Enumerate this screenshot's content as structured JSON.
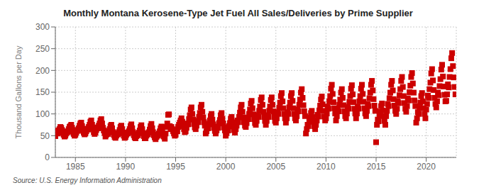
{
  "chart_data": {
    "type": "scatter",
    "title": "Monthly Montana Kerosene-Type Jet Fuel All Sales/Deliveries by Prime Supplier",
    "y_label": "Thousand Gallons per Day",
    "annotations": [
      "Source: U.S. Energy Information Administration"
    ],
    "color": "#CC0000",
    "marker": "square",
    "grid": true,
    "xlim": [
      1983.0,
      2023.0
    ],
    "ylim": [
      0,
      300
    ],
    "xticks": [
      1985,
      1990,
      1995,
      2000,
      2005,
      2010,
      2015,
      2020
    ],
    "yticks": [
      0,
      50,
      100,
      150,
      200,
      250,
      300
    ],
    "x": [
      1983,
      1983.0833333333333,
      1983.1666666666667,
      1983.25,
      1983.3333333333333,
      1983.4166666666667,
      1983.5,
      1983.5833333333333,
      1983.6666666666667,
      1983.75,
      1983.8333333333333,
      1983.9166666666667,
      1984,
      1984.0833333333333,
      1984.1666666666667,
      1984.25,
      1984.3333333333333,
      1984.4166666666667,
      1984.5,
      1984.5833333333333,
      1984.6666666666667,
      1984.75,
      1984.8333333333333,
      1984.9166666666667,
      1985,
      1985.0833333333333,
      1985.1666666666667,
      1985.25,
      1985.3333333333333,
      1985.4166666666667,
      1985.5,
      1985.5833333333333,
      1985.6666666666667,
      1985.75,
      1985.8333333333333,
      1985.9166666666667,
      1986,
      1986.0833333333333,
      1986.1666666666667,
      1986.25,
      1986.3333333333333,
      1986.4166666666667,
      1986.5,
      1986.5833333333333,
      1986.6666666666667,
      1986.75,
      1986.8333333333333,
      1986.9166666666667,
      1987,
      1987.0833333333333,
      1987.1666666666667,
      1987.25,
      1987.3333333333333,
      1987.4166666666667,
      1987.5,
      1987.5833333333333,
      1987.6666666666667,
      1987.75,
      1987.8333333333333,
      1987.9166666666667,
      1988,
      1988.0833333333333,
      1988.1666666666667,
      1988.25,
      1988.3333333333333,
      1988.4166666666667,
      1988.5,
      1988.5833333333333,
      1988.6666666666667,
      1988.75,
      1988.8333333333333,
      1988.9166666666667,
      1989,
      1989.0833333333333,
      1989.1666666666667,
      1989.25,
      1989.3333333333333,
      1989.4166666666667,
      1989.5,
      1989.5833333333333,
      1989.6666666666667,
      1989.75,
      1989.8333333333333,
      1989.9166666666667,
      1990,
      1990.0833333333333,
      1990.1666666666667,
      1990.25,
      1990.3333333333333,
      1990.4166666666667,
      1990.5,
      1990.5833333333333,
      1990.6666666666667,
      1990.75,
      1990.8333333333333,
      1990.9166666666667,
      1991,
      1991.0833333333333,
      1991.1666666666667,
      1991.25,
      1991.3333333333333,
      1991.4166666666667,
      1991.5,
      1991.5833333333333,
      1991.6666666666667,
      1991.75,
      1991.8333333333333,
      1991.9166666666667,
      1992,
      1992.0833333333333,
      1992.1666666666667,
      1992.25,
      1992.3333333333333,
      1992.4166666666667,
      1992.5,
      1992.5833333333333,
      1992.6666666666667,
      1992.75,
      1992.8333333333333,
      1992.9166666666667,
      1993,
      1993.0833333333333,
      1993.1666666666667,
      1993.25,
      1993.3333333333333,
      1993.4166666666667,
      1993.5,
      1993.5833333333333,
      1993.6666666666667,
      1993.75,
      1993.8333333333333,
      1993.9166666666667,
      1994,
      1994.0833333333333,
      1994.1666666666667,
      1994.25,
      1994.3333333333333,
      1994.4166666666667,
      1994.5,
      1994.5833333333333,
      1994.6666666666667,
      1994.75,
      1994.8333333333333,
      1994.9166666666667,
      1995,
      1995.0833333333333,
      1995.1666666666667,
      1995.25,
      1995.3333333333333,
      1995.4166666666667,
      1995.5,
      1995.5833333333333,
      1995.6666666666667,
      1995.75,
      1995.8333333333333,
      1995.9166666666667,
      1996,
      1996.0833333333333,
      1996.1666666666667,
      1996.25,
      1996.3333333333333,
      1996.4166666666667,
      1996.5,
      1996.5833333333333,
      1996.6666666666667,
      1996.75,
      1996.8333333333333,
      1996.9166666666667,
      1997,
      1997.0833333333333,
      1997.1666666666667,
      1997.25,
      1997.3333333333333,
      1997.4166666666667,
      1997.5,
      1997.5833333333333,
      1997.6666666666667,
      1997.75,
      1997.8333333333333,
      1997.9166666666667,
      1998,
      1998.0833333333333,
      1998.1666666666667,
      1998.25,
      1998.3333333333333,
      1998.4166666666667,
      1998.5,
      1998.5833333333333,
      1998.6666666666667,
      1998.75,
      1998.8333333333333,
      1998.9166666666667,
      1999,
      1999.0833333333333,
      1999.1666666666667,
      1999.25,
      1999.3333333333333,
      1999.4166666666667,
      1999.5,
      1999.5833333333333,
      1999.6666666666667,
      1999.75,
      1999.8333333333333,
      1999.9166666666667,
      2000,
      2000.0833333333333,
      2000.1666666666667,
      2000.25,
      2000.3333333333333,
      2000.4166666666667,
      2000.5,
      2000.5833333333333,
      2000.6666666666667,
      2000.75,
      2000.8333333333333,
      2000.9166666666667,
      2001,
      2001.0833333333333,
      2001.1666666666667,
      2001.25,
      2001.3333333333333,
      2001.4166666666667,
      2001.5,
      2001.5833333333333,
      2001.6666666666667,
      2001.75,
      2001.8333333333333,
      2001.9166666666667,
      2002,
      2002.0833333333333,
      2002.1666666666667,
      2002.25,
      2002.3333333333333,
      2002.4166666666667,
      2002.5,
      2002.5833333333333,
      2002.6666666666667,
      2002.75,
      2002.8333333333333,
      2002.9166666666667,
      2003,
      2003.0833333333333,
      2003.1666666666667,
      2003.25,
      2003.3333333333333,
      2003.4166666666667,
      2003.5,
      2003.5833333333333,
      2003.6666666666667,
      2003.75,
      2003.8333333333333,
      2003.9166666666667,
      2004,
      2004.0833333333333,
      2004.1666666666667,
      2004.25,
      2004.3333333333333,
      2004.4166666666667,
      2004.5,
      2004.5833333333333,
      2004.6666666666667,
      2004.75,
      2004.8333333333333,
      2004.9166666666667,
      2005,
      2005.0833333333333,
      2005.1666666666667,
      2005.25,
      2005.3333333333333,
      2005.4166666666667,
      2005.5,
      2005.5833333333333,
      2005.6666666666667,
      2005.75,
      2005.8333333333333,
      2005.9166666666667,
      2006,
      2006.0833333333333,
      2006.1666666666667,
      2006.25,
      2006.3333333333333,
      2006.4166666666667,
      2006.5,
      2006.5833333333333,
      2006.6666666666667,
      2006.75,
      2006.8333333333333,
      2006.9166666666667,
      2007,
      2007.0833333333333,
      2007.1666666666667,
      2007.25,
      2007.3333333333333,
      2007.4166666666667,
      2007.5,
      2007.5833333333333,
      2007.6666666666667,
      2007.75,
      2007.8333333333333,
      2007.9166666666667,
      2008,
      2008.0833333333333,
      2008.1666666666667,
      2008.25,
      2008.3333333333333,
      2008.4166666666667,
      2008.5,
      2008.5833333333333,
      2008.6666666666667,
      2008.75,
      2008.8333333333333,
      2008.9166666666667,
      2009,
      2009.0833333333333,
      2009.1666666666667,
      2009.25,
      2009.3333333333333,
      2009.4166666666667,
      2009.5,
      2009.5833333333333,
      2009.6666666666667,
      2009.75,
      2009.8333333333333,
      2009.9166666666667,
      2010,
      2010.0833333333333,
      2010.1666666666667,
      2010.25,
      2010.3333333333333,
      2010.4166666666667,
      2010.5,
      2010.5833333333333,
      2010.6666666666667,
      2010.75,
      2010.8333333333333,
      2010.9166666666667,
      2011,
      2011.0833333333333,
      2011.1666666666667,
      2011.25,
      2011.3333333333333,
      2011.4166666666667,
      2011.5,
      2011.5833333333333,
      2011.6666666666667,
      2011.75,
      2011.8333333333333,
      2011.9166666666667,
      2012,
      2012.0833333333333,
      2012.1666666666667,
      2012.25,
      2012.3333333333333,
      2012.4166666666667,
      2012.5,
      2012.5833333333333,
      2012.6666666666667,
      2012.75,
      2012.8333333333333,
      2012.9166666666667,
      2013,
      2013.0833333333333,
      2013.1666666666667,
      2013.25,
      2013.3333333333333,
      2013.4166666666667,
      2013.5,
      2013.5833333333333,
      2013.6666666666667,
      2013.75,
      2013.8333333333333,
      2013.9166666666667,
      2014,
      2014.0833333333333,
      2014.1666666666667,
      2014.25,
      2014.3333333333333,
      2014.4166666666667,
      2014.5,
      2014.5833333333333,
      2014.6666666666667,
      2014.75,
      2014.8333333333333,
      2014.9166666666667,
      2015,
      2015.0833333333333,
      2015.1666666666667,
      2015.25,
      2015.3333333333333,
      2015.4166666666667,
      2015.5,
      2015.5833333333333,
      2015.6666666666667,
      2015.75,
      2015.8333333333333,
      2015.9166666666667,
      2016,
      2016.0833333333333,
      2016.1666666666667,
      2016.25,
      2016.3333333333333,
      2016.4166666666667,
      2016.5,
      2016.5833333333333,
      2016.6666666666667,
      2016.75,
      2016.8333333333333,
      2016.9166666666667,
      2017,
      2017.0833333333333,
      2017.1666666666667,
      2017.25,
      2017.3333333333333,
      2017.4166666666667,
      2017.5,
      2017.5833333333333,
      2017.6666666666667,
      2017.75,
      2017.8333333333333,
      2017.9166666666667,
      2018,
      2018.0833333333333,
      2018.1666666666667,
      2018.25,
      2018.3333333333333,
      2018.4166666666667,
      2018.5,
      2018.5833333333333,
      2018.6666666666667,
      2018.75,
      2018.8333333333333,
      2018.9166666666667,
      2019,
      2019.0833333333333,
      2019.1666666666667,
      2019.25,
      2019.3333333333333,
      2019.4166666666667,
      2019.5,
      2019.5833333333333,
      2019.6666666666667,
      2019.75,
      2019.8333333333333,
      2019.9166666666667,
      2020,
      2020.0833333333333,
      2020.1666666666667,
      2020.25,
      2020.3333333333333,
      2020.4166666666667,
      2020.5,
      2020.5833333333333,
      2020.6666666666667,
      2020.75,
      2020.8333333333333,
      2020.9166666666667,
      2021,
      2021.0833333333333,
      2021.1666666666667,
      2021.25,
      2021.3333333333333,
      2021.4166666666667,
      2021.5,
      2021.5833333333333,
      2021.6666666666667,
      2021.75,
      2021.8333333333333,
      2021.9166666666667,
      2022,
      2022.0833333333333,
      2022.1666666666667,
      2022.25,
      2022.3333333333333,
      2022.4166666666667,
      2022.5,
      2022.5833333333333,
      2022.6666666666667,
      2022.75,
      2022.8333333333333,
      2022.9166666666667
    ],
    "values": [
      49,
      62,
      58,
      55,
      60,
      65,
      70,
      68,
      63,
      57,
      52,
      48,
      50,
      55,
      60,
      58,
      65,
      70,
      72,
      75,
      68,
      60,
      54,
      50,
      52,
      57,
      63,
      61,
      67,
      73,
      78,
      80,
      72,
      63,
      57,
      53,
      55,
      60,
      66,
      64,
      70,
      75,
      82,
      85,
      75,
      66,
      58,
      54,
      57,
      63,
      69,
      67,
      73,
      78,
      85,
      88,
      78,
      68,
      62,
      56,
      48,
      52,
      57,
      54,
      60,
      65,
      72,
      75,
      67,
      58,
      52,
      47,
      45,
      50,
      55,
      53,
      58,
      63,
      70,
      73,
      65,
      56,
      50,
      45,
      47,
      52,
      57,
      55,
      60,
      65,
      72,
      76,
      67,
      58,
      51,
      46,
      44,
      49,
      54,
      51,
      57,
      62,
      70,
      74,
      65,
      56,
      49,
      44,
      44,
      50,
      55,
      53,
      58,
      64,
      72,
      77,
      67,
      58,
      51,
      46,
      42,
      47,
      52,
      50,
      55,
      60,
      67,
      71,
      62,
      54,
      48,
      43,
      55,
      70,
      78,
      98,
      99,
      72,
      65,
      70,
      65,
      60,
      55,
      50,
      52,
      63,
      60,
      70,
      75,
      80,
      85,
      90,
      82,
      72,
      65,
      58,
      60,
      68,
      78,
      76,
      88,
      97,
      110,
      115,
      100,
      87,
      77,
      69,
      65,
      73,
      84,
      81,
      93,
      102,
      115,
      121,
      105,
      92,
      81,
      73,
      55,
      60,
      70,
      67,
      77,
      85,
      95,
      100,
      87,
      76,
      68,
      61,
      55,
      62,
      71,
      68,
      79,
      86,
      97,
      102,
      89,
      78,
      69,
      62,
      50,
      56,
      65,
      62,
      72,
      79,
      89,
      93,
      81,
      71,
      63,
      57,
      65,
      73,
      85,
      81,
      93,
      103,
      115,
      121,
      105,
      92,
      81,
      73,
      70,
      79,
      91,
      88,
      100,
      110,
      124,
      130,
      113,
      99,
      88,
      79,
      75,
      84,
      97,
      93,
      107,
      117,
      132,
      138,
      121,
      105,
      93,
      84,
      75,
      84,
      97,
      93,
      107,
      117,
      132,
      138,
      121,
      106,
      93,
      84,
      80,
      90,
      104,
      100,
      114,
      126,
      141,
      148,
      129,
      113,
      100,
      90,
      80,
      90,
      104,
      100,
      115,
      126,
      141,
      148,
      130,
      113,
      100,
      90,
      85,
      95,
      110,
      106,
      121,
      133,
      149,
      157,
      137,
      120,
      106,
      95,
      55,
      65,
      75,
      72,
      83,
      91,
      102,
      107,
      93,
      82,
      72,
      65,
      75,
      85,
      98,
      94,
      108,
      119,
      133,
      140,
      122,
      107,
      94,
      85,
      90,
      101,
      117,
      112,
      129,
      141,
      158,
      167,
      146,
      127,
      113,
      101,
      85,
      95,
      110,
      106,
      121,
      133,
      149,
      157,
      137,
      120,
      106,
      95,
      90,
      101,
      116,
      112,
      128,
      141,
      158,
      166,
      145,
      127,
      112,
      101,
      90,
      101,
      117,
      112,
      129,
      141,
      158,
      167,
      146,
      128,
      113,
      101,
      95,
      107,
      123,
      118,
      136,
      149,
      167,
      176,
      154,
      134,
      119,
      107,
      35,
      75,
      87,
      83,
      96,
      105,
      118,
      124,
      108,
      95,
      84,
      75,
      95,
      107,
      123,
      118,
      136,
      149,
      167,
      176,
      154,
      134,
      119,
      107,
      100,
      112,
      130,
      125,
      143,
      157,
      176,
      185,
      162,
      141,
      125,
      112,
      105,
      118,
      136,
      131,
      150,
      165,
      185,
      194,
      170,
      149,
      131,
      118,
      80,
      90,
      104,
      100,
      114,
      126,
      141,
      148,
      129,
      113,
      100,
      90,
      110,
      123,
      142,
      137,
      157,
      172,
      193,
      203,
      177,
      155,
      137,
      123,
      115,
      129,
      149,
      143,
      164,
      180,
      202,
      213,
      186,
      163,
      144,
      129,
      130,
      145,
      168,
      161,
      185,
      203,
      228,
      240,
      210,
      184,
      162,
      145
    ]
  }
}
